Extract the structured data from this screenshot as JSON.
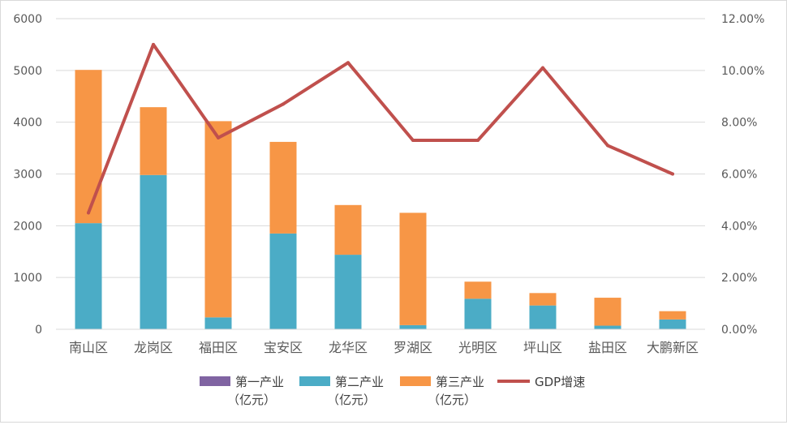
{
  "chart_data": {
    "type": "bar",
    "stacked": true,
    "secondary_type": "line",
    "categories": [
      "南山区",
      "龙岗区",
      "福田区",
      "宝安区",
      "龙华区",
      "罗湖区",
      "光明区",
      "坪山区",
      "盐田区",
      "大鹏新区"
    ],
    "series": [
      {
        "name": "第一产业（亿元）",
        "legend_line1": "第一产业",
        "legend_line2": "（亿元）",
        "color": "#8064a2",
        "values": [
          0,
          0,
          0,
          0,
          0,
          0,
          0,
          0,
          0,
          0
        ]
      },
      {
        "name": "第二产业（亿元）",
        "legend_line1": "第二产业",
        "legend_line2": "（亿元）",
        "color": "#4bacc6",
        "values": [
          2050,
          2980,
          230,
          1850,
          1440,
          80,
          590,
          460,
          70,
          190
        ]
      },
      {
        "name": "第三产业（亿元）",
        "legend_line1": "第三产业",
        "legend_line2": "（亿元）",
        "color": "#f79646",
        "values": [
          2960,
          1310,
          3790,
          1770,
          960,
          2170,
          330,
          240,
          540,
          160
        ]
      }
    ],
    "line_series": {
      "name": "GDP增速",
      "color": "#c0504d",
      "values": [
        4.5,
        11.0,
        7.4,
        8.7,
        10.3,
        7.3,
        7.3,
        10.1,
        7.1,
        6.0
      ]
    },
    "y_left": {
      "min": 0,
      "max": 6000,
      "ticks": [
        "0",
        "1000",
        "2000",
        "3000",
        "4000",
        "5000",
        "6000"
      ]
    },
    "y_right": {
      "min": 0,
      "max": 12,
      "ticks": [
        "0.00%",
        "2.00%",
        "4.00%",
        "6.00%",
        "8.00%",
        "10.00%",
        "12.00%"
      ]
    },
    "grid": true,
    "legend_position": "bottom"
  }
}
